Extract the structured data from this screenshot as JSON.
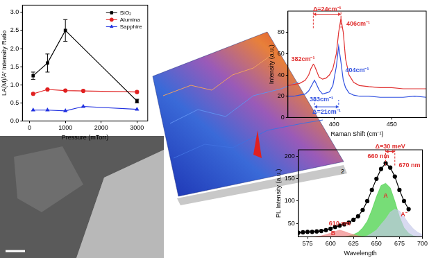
{
  "chart_data": [
    {
      "type": "line",
      "x_label": "Pressure (mTorr)",
      "y_label": "LA(M)/A' Intensity Ratio",
      "xlim": [
        -200,
        3300
      ],
      "xticks": [
        0,
        1000,
        2000,
        3000
      ],
      "ylim": [
        0,
        3.2
      ],
      "yticks": [
        {
          "value": 0,
          "label": "0.0"
        },
        0.5,
        {
          "value": 1,
          "label": "1.0"
        },
        1.5,
        {
          "value": 2,
          "label": "2.0"
        },
        2.5,
        {
          "value": 3,
          "label": "3.0"
        }
      ],
      "grid": false,
      "legend": "top right",
      "series": [
        {
          "name": "SiO₂",
          "color": "#000000",
          "marker": "square",
          "x": [
            100,
            500,
            1000,
            3000
          ],
          "values": [
            1.25,
            1.6,
            2.5,
            0.55
          ],
          "errors": [
            0.1,
            0.25,
            0.3,
            0.05
          ]
        },
        {
          "name": "Alumina",
          "color": "#e02020",
          "marker": "circle",
          "x": [
            100,
            500,
            1000,
            1500,
            3000
          ],
          "values": [
            0.75,
            0.87,
            0.84,
            0.83,
            0.8
          ]
        },
        {
          "name": "Sapphire",
          "color": "#2030e0",
          "marker": "triangle",
          "x": [
            100,
            500,
            1000,
            1500,
            3000
          ],
          "values": [
            0.3,
            0.3,
            0.28,
            0.4,
            0.32
          ]
        }
      ]
    },
    {
      "type": "line",
      "x_label": "Raman Shift (cm⁻¹)",
      "y_label": "Intensity (a.u.)",
      "xlim": [
        360,
        480
      ],
      "xticks": [
        400,
        450
      ],
      "ylim": [
        0,
        100
      ],
      "yticks": [
        0,
        20,
        40,
        60,
        80
      ],
      "grid": false,
      "x": [
        360,
        365,
        370,
        375,
        378,
        380,
        382,
        383,
        384,
        387,
        390,
        393,
        396,
        399,
        402,
        404,
        406,
        408,
        410,
        413,
        417,
        422,
        430,
        440,
        450,
        460,
        470,
        480
      ],
      "series": [
        {
          "color": "#e03030",
          "values": [
            30,
            31,
            32,
            35,
            40,
            46,
            50,
            49,
            46,
            38,
            36,
            37,
            40,
            46,
            60,
            80,
            93,
            80,
            55,
            40,
            33,
            30,
            29,
            28,
            28,
            27,
            27,
            27
          ]
        },
        {
          "color": "#3050e0",
          "values": [
            20,
            20,
            21,
            22,
            25,
            29,
            33,
            35,
            33,
            26,
            22,
            23,
            24,
            30,
            48,
            67,
            52,
            35,
            28,
            23,
            21,
            20,
            20,
            19,
            19,
            19,
            20,
            19
          ]
        }
      ],
      "annotations": [
        {
          "text": "406cm⁻¹",
          "x": 421,
          "y": 88,
          "color": "#e03030"
        },
        {
          "text": "382cm⁻¹",
          "x": 373,
          "y": 55,
          "color": "#e03030"
        },
        {
          "text": "404cm⁻¹",
          "x": 420,
          "y": 44,
          "color": "#3050e0"
        },
        {
          "text": "383cm⁻¹",
          "x": 389,
          "y": 17,
          "color": "#3050e0"
        }
      ],
      "spans": [
        {
          "text": "Δ=24cm⁻¹",
          "x1": 382,
          "x2": 406,
          "y": 97,
          "color": "#e03030"
        },
        {
          "text": "Δ=21cm⁻¹",
          "x1": 383,
          "x2": 404,
          "y": 10,
          "color": "#3050e0"
        }
      ]
    },
    {
      "type": "line",
      "x_label": "Wavelength",
      "y_label": "PL Intensity (a.u.)",
      "xlim": [
        565,
        700
      ],
      "xticks": [
        575,
        600,
        625,
        650,
        675,
        700
      ],
      "ylim": [
        20,
        215
      ],
      "yticks": [
        50,
        100,
        150,
        200
      ],
      "grid": false,
      "x": [
        565,
        570,
        575,
        580,
        585,
        590,
        595,
        600,
        605,
        610,
        615,
        620,
        625,
        630,
        635,
        640,
        645,
        650,
        655,
        660,
        665,
        670,
        675,
        680,
        685,
        690,
        695,
        700
      ],
      "series": [
        {
          "type": "area",
          "color": "#f08080",
          "values": [
            20,
            20,
            20,
            20,
            21,
            22,
            25,
            28,
            32,
            35,
            32,
            28,
            25,
            22,
            20,
            20,
            20,
            20,
            20,
            20,
            20,
            20,
            20,
            20,
            20,
            20,
            20,
            20
          ]
        },
        {
          "type": "area",
          "color": "#c4c8e8",
          "values": [
            20,
            20,
            20,
            20,
            20,
            20,
            20,
            20,
            20,
            20,
            20,
            20,
            20,
            20,
            20,
            22,
            28,
            35,
            48,
            60,
            75,
            82,
            78,
            65,
            50,
            38,
            30,
            25
          ]
        },
        {
          "type": "area",
          "color": "#33cc33",
          "values": [
            20,
            20,
            20,
            20,
            20,
            20,
            20,
            20,
            20,
            20,
            20,
            22,
            25,
            30,
            40,
            55,
            80,
            110,
            135,
            140,
            130,
            100,
            65,
            40,
            28,
            22,
            20,
            20
          ]
        },
        {
          "type": "line",
          "color": "#000000",
          "marker": "circle",
          "values": [
            29,
            30,
            31,
            31,
            32,
            33,
            35,
            38,
            42,
            45,
            48,
            52,
            58,
            66,
            80,
            100,
            125,
            150,
            172,
            185,
            175,
            155,
            125,
            100,
            82,
            null,
            null,
            null
          ]
        }
      ],
      "annotations": [
        {
          "text": "660 nm",
          "x": 652,
          "y": 200,
          "color": "#e03030"
        },
        {
          "text": "670 nm",
          "x": 686,
          "y": 180,
          "color": "#e03030"
        },
        {
          "text": "610 nm",
          "x": 610,
          "y": 50,
          "color": "#e03030"
        },
        {
          "text": "A",
          "x": 660,
          "y": 112,
          "color": "#e03030"
        },
        {
          "text": "A⁻",
          "x": 680,
          "y": 70,
          "color": "#e03030"
        },
        {
          "text": "B",
          "x": 603,
          "y": 27,
          "color": "#e03030"
        }
      ],
      "spans": [
        {
          "text": "Δ=30 meV",
          "x1": 660,
          "x2": 670,
          "y": 211,
          "color": "#e03030"
        }
      ]
    }
  ],
  "surface_plot": {
    "tick_label": "2"
  }
}
